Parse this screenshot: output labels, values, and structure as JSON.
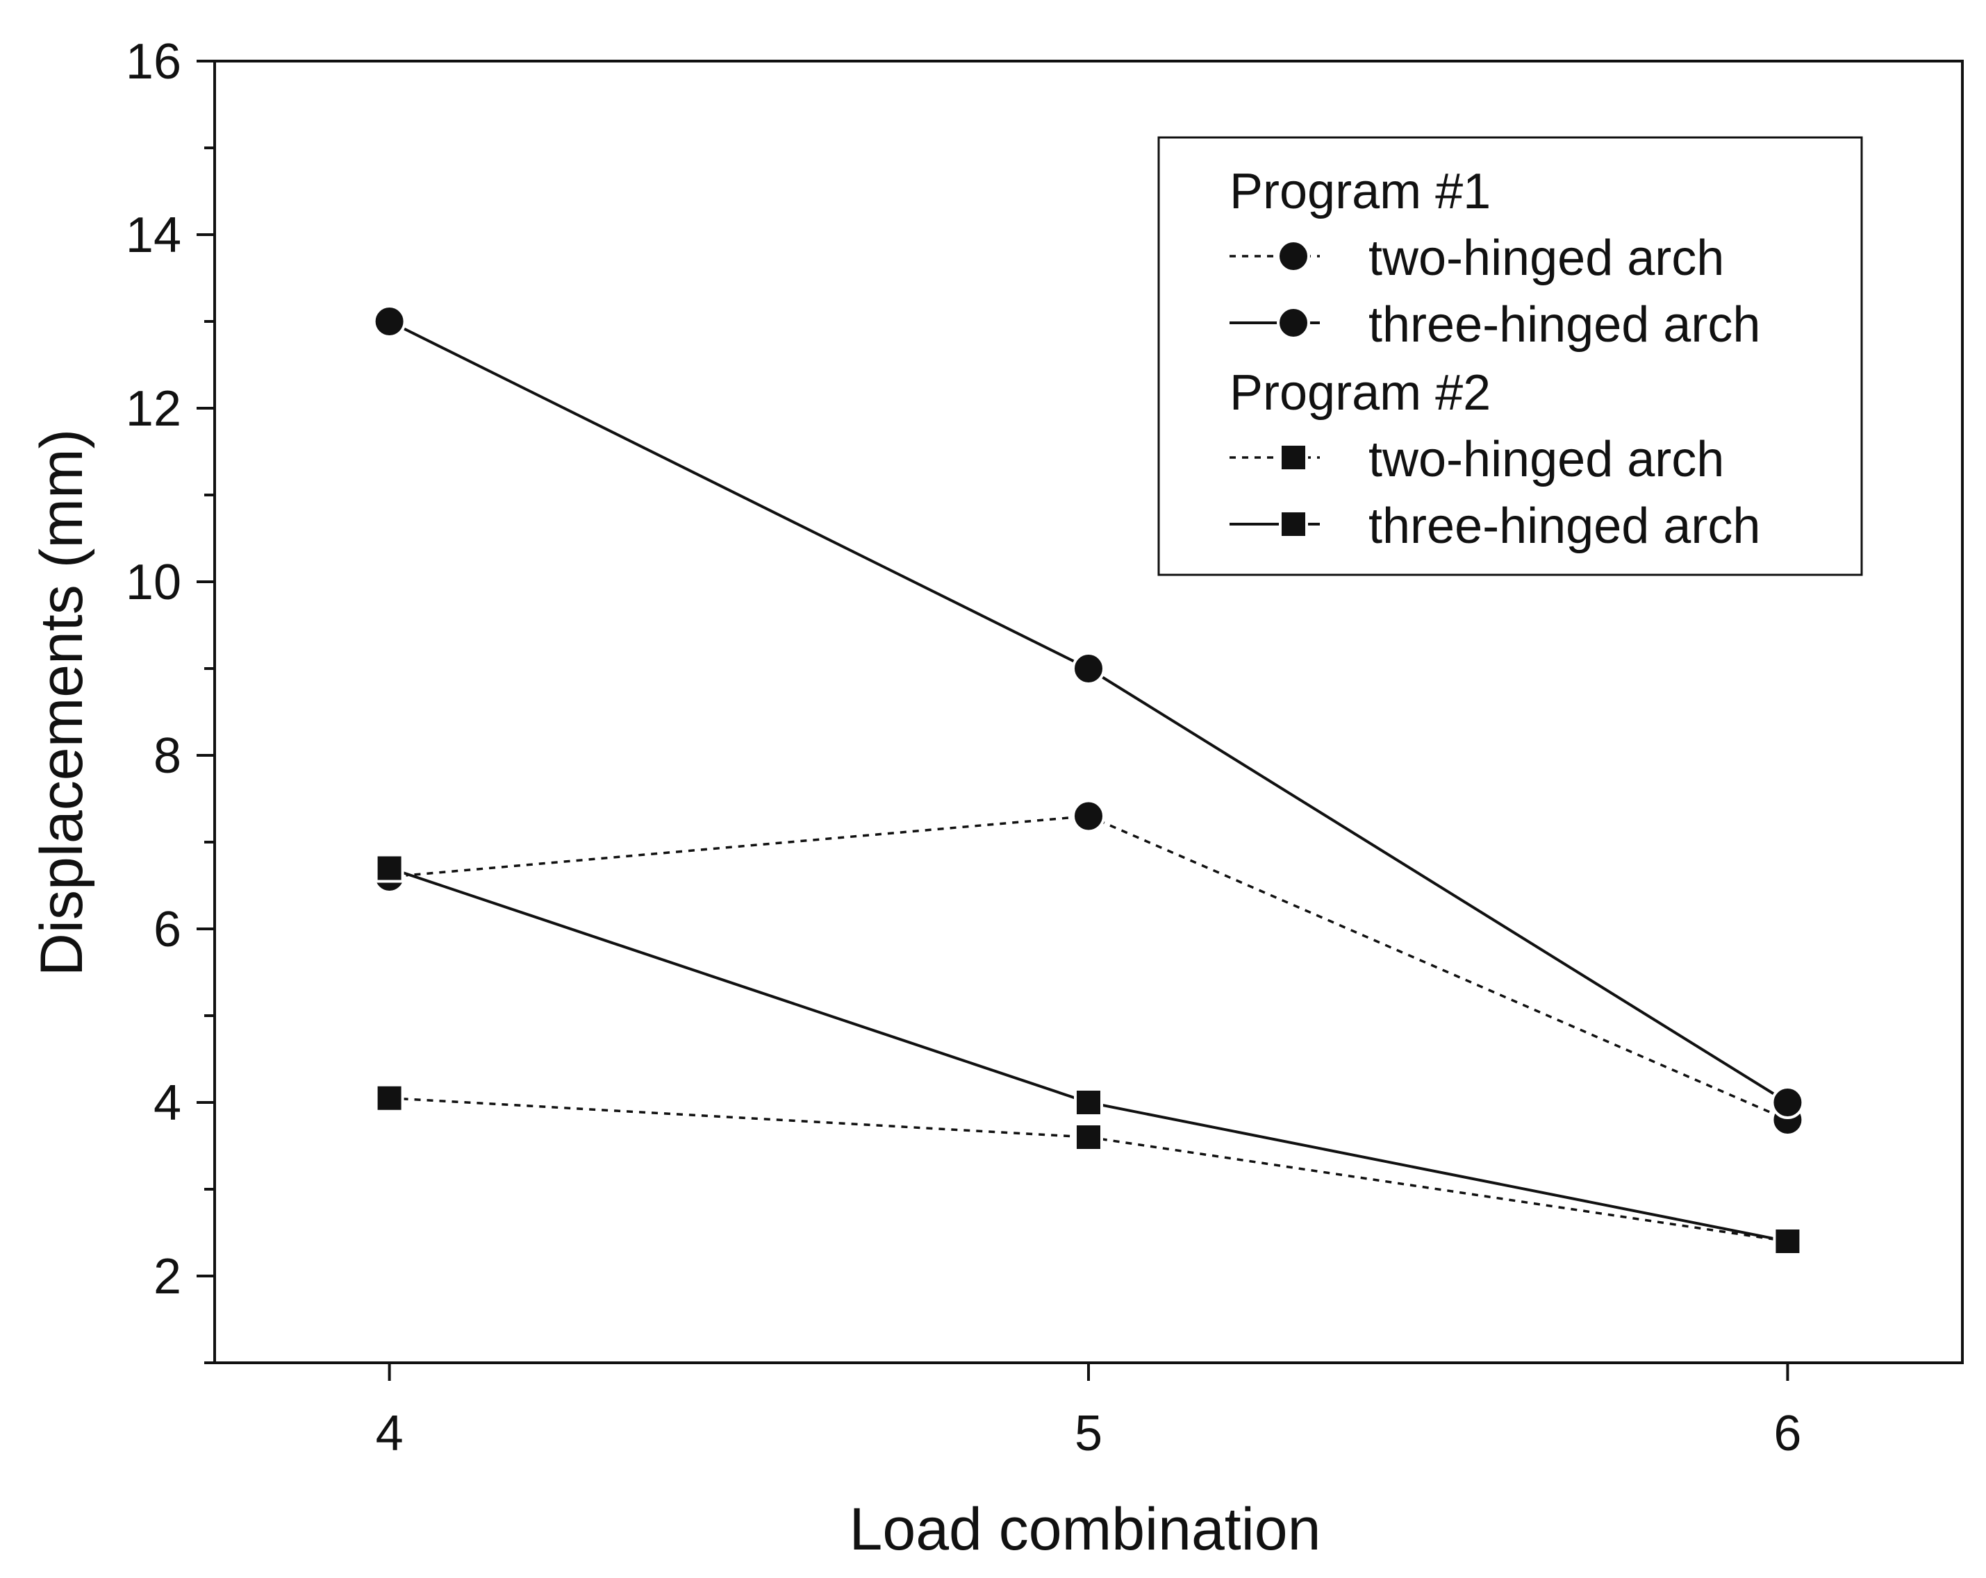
{
  "chart_data": {
    "type": "line",
    "title": "",
    "xlabel": "Load combination",
    "ylabel": "Displacements (mm)",
    "x": [
      4,
      5,
      6
    ],
    "xlim": [
      3.75,
      6.25
    ],
    "ylim": [
      1,
      16
    ],
    "xticks": [
      4,
      5,
      6
    ],
    "yticks": [
      2,
      4,
      6,
      8,
      10,
      12,
      14,
      16
    ],
    "grid": false,
    "legend_position": "top-right",
    "legend_groups": [
      {
        "heading": "Program #1",
        "series": [
          0,
          1
        ]
      },
      {
        "heading": "Program #2",
        "series": [
          2,
          3
        ]
      }
    ],
    "series": [
      {
        "name": "two-hinged arch",
        "program": "Program #1",
        "marker": "circle",
        "line": "dotted",
        "values": [
          6.6,
          7.3,
          3.8
        ]
      },
      {
        "name": "three-hinged arch",
        "program": "Program #1",
        "marker": "circle",
        "line": "solid",
        "values": [
          13.0,
          9.0,
          4.0
        ]
      },
      {
        "name": "two-hinged arch",
        "program": "Program #2",
        "marker": "square",
        "line": "dotted",
        "values": [
          4.05,
          3.6,
          2.4
        ]
      },
      {
        "name": "three-hinged arch",
        "program": "Program #2",
        "marker": "square",
        "line": "solid",
        "values": [
          6.7,
          4.0,
          2.4
        ]
      }
    ],
    "colors": {
      "ink": "#111111",
      "background": "#ffffff"
    }
  }
}
